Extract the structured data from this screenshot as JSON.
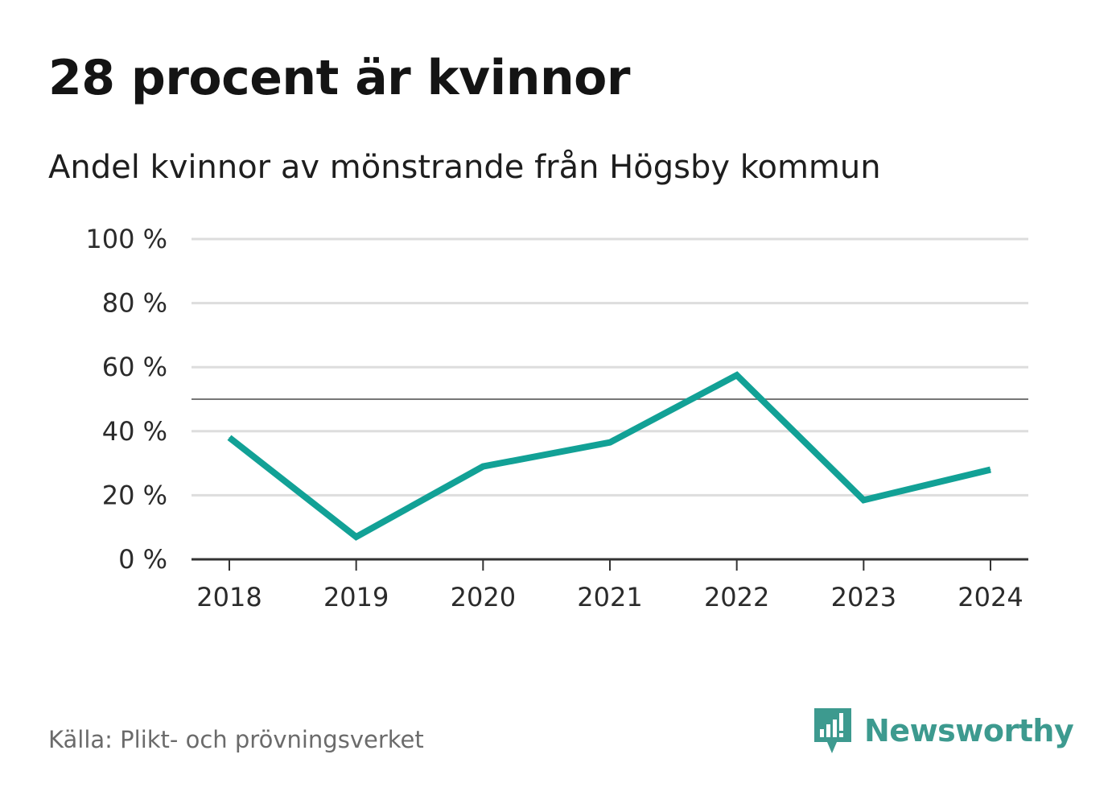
{
  "header": {
    "title": "28 procent är kvinnor",
    "subtitle": "Andel kvinnor av mönstrande från Högsby kommun"
  },
  "footer": {
    "source": "Källa: Plikt- och prövningsverket",
    "brand": "Newsworthy",
    "brand_color": "#3d9a8f"
  },
  "colors": {
    "line": "#12a196",
    "grid": "#dddddd",
    "reference": "#777777",
    "axis": "#333333"
  },
  "chart_data": {
    "type": "line",
    "title": "28 procent är kvinnor",
    "subtitle": "Andel kvinnor av mönstrande från Högsby kommun",
    "xlabel": "",
    "ylabel": "",
    "categories": [
      "2018",
      "2019",
      "2020",
      "2021",
      "2022",
      "2023",
      "2024"
    ],
    "series": [
      {
        "name": "Andel kvinnor",
        "values": [
          38,
          7,
          29,
          36.5,
          57.5,
          18.5,
          28
        ]
      }
    ],
    "ylim": [
      0,
      100
    ],
    "yticks": [
      0,
      20,
      40,
      60,
      80,
      100
    ],
    "ytick_labels": [
      "0 %",
      "20 %",
      "40 %",
      "60 %",
      "80 %",
      "100 %"
    ],
    "reference_line": 50,
    "grid": true
  }
}
